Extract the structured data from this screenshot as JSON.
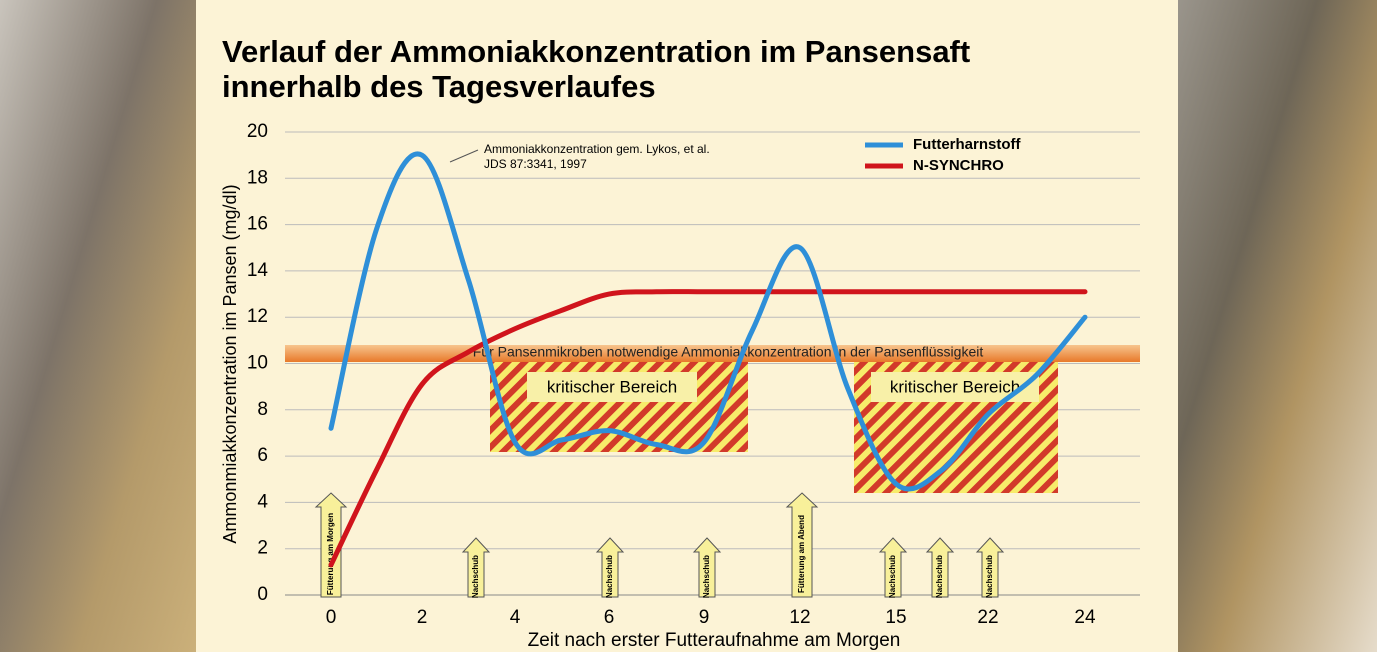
{
  "chart_data": {
    "type": "line",
    "title": "Verlauf der Ammoniakkonzentration im Pansensaft",
    "subtitle": "innerhalb des Tagesverlaufes",
    "x_label": "Zeit nach erster Futteraufnahme am Morgen",
    "y_label": "Ammonmiakkonzentration im Pansen (mg/dl)",
    "categories": [
      "0",
      null,
      "2",
      null,
      "4",
      null,
      "6",
      null,
      "9",
      null,
      "12",
      null,
      "15",
      null,
      "22",
      null,
      "24"
    ],
    "series": [
      {
        "name": "Futterharnstoff",
        "color": "#2e8fd8",
        "values": [
          7.2,
          15.8,
          19,
          13.6,
          6.6,
          6.7,
          7.1,
          6.5,
          6.6,
          11.4,
          15,
          8.9,
          4.8,
          5.4,
          7.8,
          9.5,
          12
        ]
      },
      {
        "name": "N-SYNCHRO",
        "color": "#d0141c",
        "values": [
          1.3,
          5.4,
          9.1,
          10.5,
          11.5,
          12.3,
          13,
          13.1,
          13.1,
          13.1,
          13.1,
          13.1,
          13.1,
          13.1,
          13.1,
          13.1,
          13.1
        ]
      }
    ],
    "ylim": [
      0,
      20
    ],
    "yticks": [
      0,
      2,
      4,
      6,
      8,
      10,
      12,
      14,
      16,
      18,
      20
    ],
    "grid": true,
    "legend": "top right",
    "source_note": [
      "Ammoniakkonzentration gem. Lykos, et al.",
      "JDS 87:3341, 1997"
    ],
    "threshold_label": "Für Pansenmikroben notwendige Ammoniakkonzentration in der Pansenflüssigkeit",
    "critical_labels": [
      "kritischer Bereich",
      "kritischer Bereich"
    ],
    "arrows": [
      "Fütterung am Morgen",
      "Nachschub",
      "Nachschub",
      "Nachschub",
      "Fütterung am Abend",
      "Nachschub",
      "Nachschub",
      "Nachschub"
    ]
  }
}
